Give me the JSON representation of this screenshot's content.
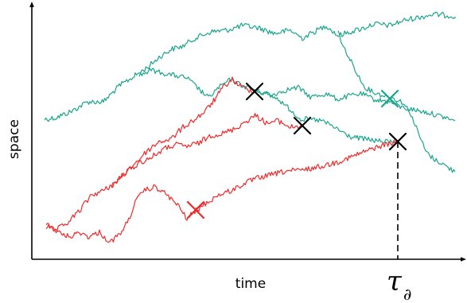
{
  "axes": {
    "xlabel": "time",
    "ylabel": "space",
    "marker_label": "τ",
    "marker_subscript": "∂"
  },
  "colors": {
    "survivor": "#1aa58e",
    "killed": "#ee2a2a",
    "cross": "#000000",
    "axis": "#000000"
  }
}
